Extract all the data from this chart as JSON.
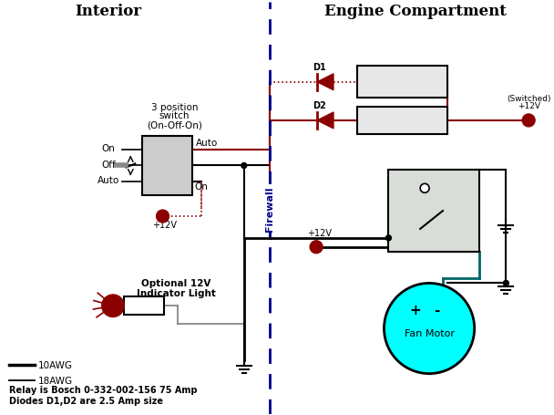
{
  "title_left": "Interior",
  "title_right": "Engine Compartment",
  "firewall_label": "Firewall",
  "bg_color": "#ffffff",
  "fig_width": 6.08,
  "fig_height": 4.56,
  "dpi": 100
}
